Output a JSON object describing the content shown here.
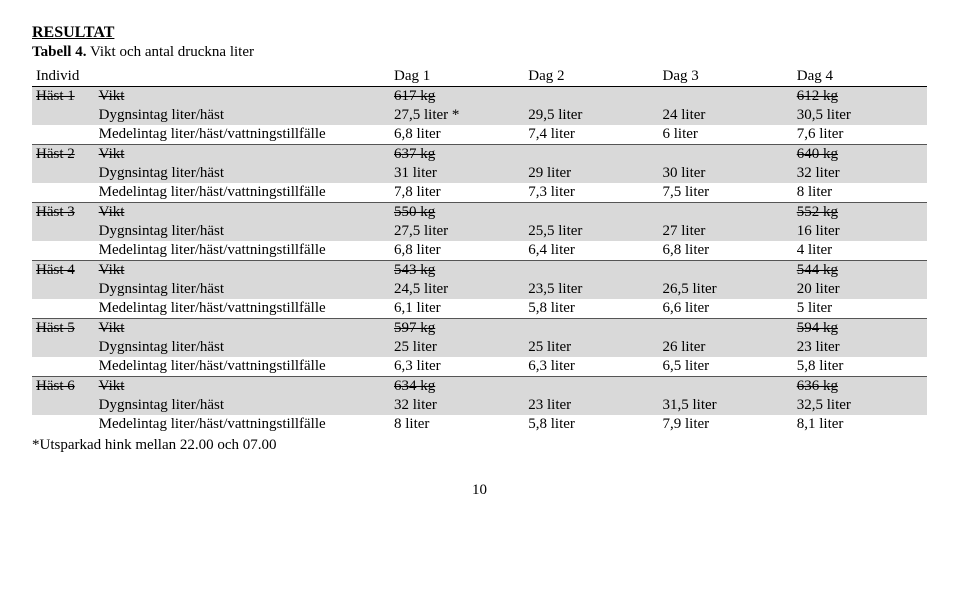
{
  "heading": "RESULTAT",
  "caption_label": "Tabell 4.",
  "caption_rest": " Vikt och antal druckna liter",
  "colhdr": {
    "individ": "Individ",
    "d1": "Dag 1",
    "d2": "Dag 2",
    "d3": "Dag 3",
    "d4": "Dag 4"
  },
  "labels": {
    "vikt": "Vikt",
    "dyg": "Dygnsintag liter/häst",
    "medel": "Medelintag liter/häst/vattningstillfälle"
  },
  "footnote": "*Utsparkad hink mellan 22.00 och 07.00",
  "pageno": "10",
  "horses": [
    {
      "name": "Häst 1",
      "vikt": {
        "d1": "617 kg",
        "d2": "",
        "d3": "",
        "d4": "612 kg"
      },
      "dyg": {
        "d1": "27,5 liter *",
        "d2": "29,5 liter",
        "d3": "24 liter",
        "d4": "30,5 liter"
      },
      "med": {
        "d1": "6,8 liter",
        "d2": "7,4 liter",
        "d3": "6 liter",
        "d4": "7,6 liter"
      }
    },
    {
      "name": "Häst 2",
      "vikt": {
        "d1": "637 kg",
        "d2": "",
        "d3": "",
        "d4": "640 kg"
      },
      "dyg": {
        "d1": "31 liter",
        "d2": "29 liter",
        "d3": "30 liter",
        "d4": "32 liter"
      },
      "med": {
        "d1": "7,8 liter",
        "d2": "7,3 liter",
        "d3": "7,5 liter",
        "d4": "8 liter"
      }
    },
    {
      "name": "Häst 3",
      "vikt": {
        "d1": "550 kg",
        "d2": "",
        "d3": "",
        "d4": "552 kg"
      },
      "dyg": {
        "d1": "27,5 liter",
        "d2": "25,5 liter",
        "d3": "27 liter",
        "d4": "16 liter"
      },
      "med": {
        "d1": "6,8 liter",
        "d2": "6,4 liter",
        "d3": "6,8 liter",
        "d4": "4 liter"
      }
    },
    {
      "name": "Häst 4",
      "vikt": {
        "d1": "543 kg",
        "d2": "",
        "d3": "",
        "d4": "544 kg"
      },
      "dyg": {
        "d1": "24,5 liter",
        "d2": "23,5 liter",
        "d3": "26,5 liter",
        "d4": "20 liter"
      },
      "med": {
        "d1": "6,1 liter",
        "d2": "5,8 liter",
        "d3": "6,6 liter",
        "d4": "5 liter"
      }
    },
    {
      "name": "Häst 5",
      "vikt": {
        "d1": "597 kg",
        "d2": "",
        "d3": "",
        "d4": "594 kg"
      },
      "dyg": {
        "d1": "25 liter",
        "d2": "25 liter",
        "d3": "26 liter",
        "d4": "23 liter"
      },
      "med": {
        "d1": "6,3 liter",
        "d2": "6,3 liter",
        "d3": "6,5 liter",
        "d4": "5,8 liter"
      }
    },
    {
      "name": "Häst 6",
      "vikt": {
        "d1": "634 kg",
        "d2": "",
        "d3": "",
        "d4": "636 kg"
      },
      "dyg": {
        "d1": "32 liter",
        "d2": "23 liter",
        "d3": "31,5 liter",
        "d4": "32,5 liter"
      },
      "med": {
        "d1": "8 liter",
        "d2": "5,8 liter",
        "d3": "7,9 liter",
        "d4": "8,1 liter"
      }
    }
  ]
}
